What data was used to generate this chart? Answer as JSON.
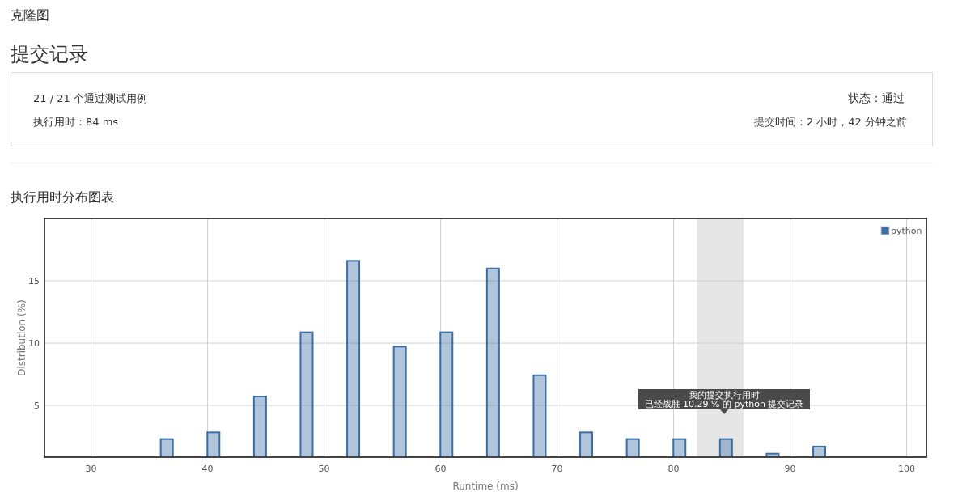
{
  "chart_data": {
    "type": "bar",
    "title": "执行用时分布图表",
    "xlabel": "Runtime (ms)",
    "ylabel": "Distribution (%)",
    "x": [
      36.5,
      40.5,
      44.5,
      48.5,
      52.5,
      56.5,
      60.5,
      64.5,
      68.5,
      72.5,
      76.5,
      80.5,
      84.5,
      88.5,
      92.5
    ],
    "series": [
      {
        "name": "python",
        "color": "#3a6ea5",
        "values": [
          2.3,
          2.84,
          5.72,
          10.87,
          16.6,
          9.72,
          10.87,
          15.99,
          7.42,
          2.84,
          2.3,
          2.3,
          2.3,
          1.13,
          1.7
        ]
      }
    ],
    "xlim": [
      26,
      101.7
    ],
    "ylim": [
      0.85,
      20
    ],
    "xticks": [
      30,
      40,
      50,
      60,
      70,
      80,
      90,
      100
    ],
    "yticks": [
      5,
      10,
      15
    ],
    "grid": true,
    "legend": "top right",
    "bands": [
      {
        "axis": "x",
        "from": 82,
        "to": 86,
        "color": "#e6e6e6"
      }
    ],
    "annotations": [
      "克隆图",
      "提交记录",
      "21 / 21 个通过测试用例",
      "执行用时：84 ms",
      "状态：通过",
      "提交时间：2 小时，42 分钟之前",
      "我的提交执行用时",
      "已经战胜 10.29 % 的 python 提交记录"
    ]
  }
}
